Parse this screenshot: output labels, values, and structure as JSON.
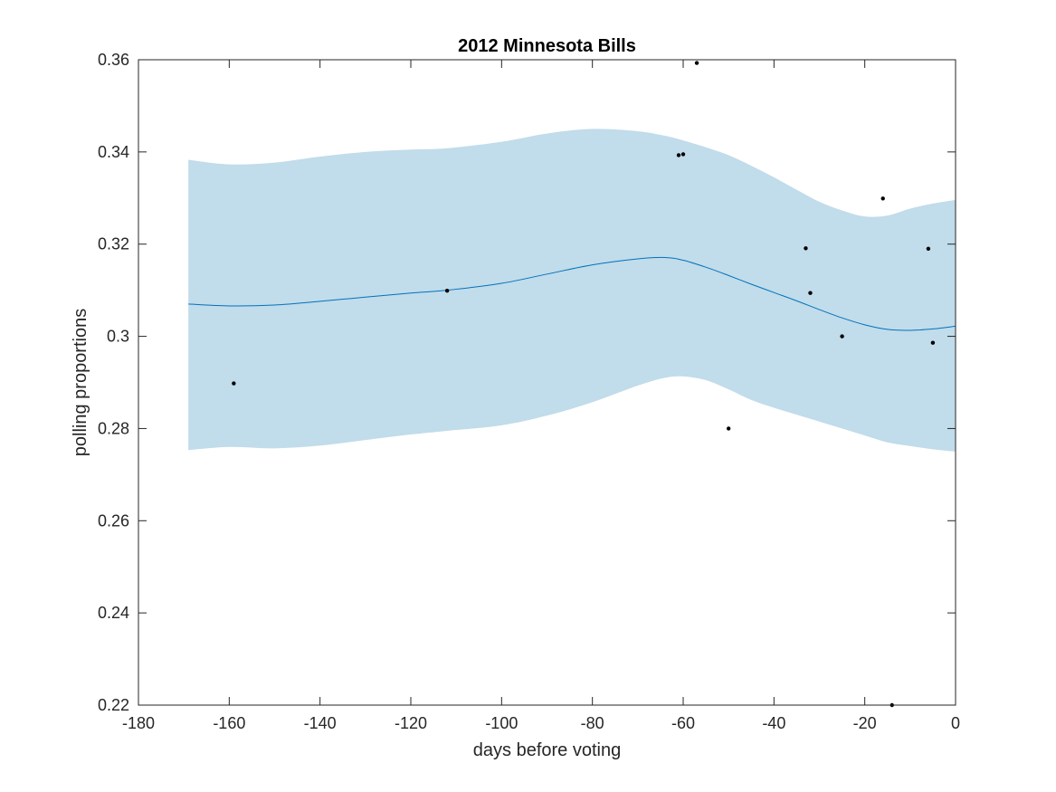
{
  "chart_data": {
    "type": "line",
    "title": "2012 Minnesota Bills",
    "xlabel": "days before voting",
    "ylabel": "polling proportions",
    "xlim": [
      -180,
      0
    ],
    "ylim": [
      0.22,
      0.36
    ],
    "x_ticks": [
      -180,
      -160,
      -140,
      -120,
      -100,
      -80,
      -60,
      -40,
      -20,
      0
    ],
    "y_ticks": [
      0.22,
      0.24,
      0.26,
      0.28,
      0.3,
      0.32,
      0.34,
      0.36
    ],
    "x_tick_labels": [
      "-180",
      "-160",
      "-140",
      "-120",
      "-100",
      "-80",
      "-60",
      "-40",
      "-20",
      "0"
    ],
    "y_tick_labels": [
      "0.22",
      "0.24",
      "0.26",
      "0.28",
      "0.3",
      "0.32",
      "0.34",
      "0.36"
    ],
    "grid": false,
    "colors": {
      "band": "#c1dcea",
      "line": "#0072bd",
      "points": "#000000",
      "axes": "#262626"
    },
    "trend": {
      "x": [
        -169,
        -160,
        -150,
        -140,
        -130,
        -120,
        -112,
        -100,
        -90,
        -80,
        -70,
        -64,
        -60,
        -55,
        -50,
        -45,
        -40,
        -35,
        -30,
        -25,
        -20,
        -15,
        -10,
        -5,
        0
      ],
      "mean": [
        0.307,
        0.3066,
        0.3068,
        0.3076,
        0.3085,
        0.3094,
        0.31,
        0.3115,
        0.3135,
        0.3155,
        0.3168,
        0.3171,
        0.3165,
        0.315,
        0.3132,
        0.3113,
        0.3095,
        0.3077,
        0.3058,
        0.304,
        0.3025,
        0.3015,
        0.3013,
        0.3016,
        0.3022
      ],
      "upper": [
        0.3383,
        0.3373,
        0.3377,
        0.339,
        0.34,
        0.3405,
        0.3408,
        0.3422,
        0.344,
        0.345,
        0.3445,
        0.3435,
        0.3425,
        0.341,
        0.3393,
        0.337,
        0.3345,
        0.3318,
        0.3292,
        0.3273,
        0.326,
        0.3262,
        0.3277,
        0.3288,
        0.3296
      ],
      "lower": [
        0.2753,
        0.276,
        0.2757,
        0.2763,
        0.2775,
        0.2787,
        0.2795,
        0.2807,
        0.2828,
        0.2857,
        0.2893,
        0.291,
        0.2913,
        0.2905,
        0.2885,
        0.2862,
        0.2845,
        0.283,
        0.2815,
        0.28,
        0.2785,
        0.277,
        0.2762,
        0.2755,
        0.275
      ]
    },
    "points": {
      "x": [
        -159,
        -112,
        -61,
        -60,
        -57,
        -50,
        -33,
        -32,
        -25,
        -16,
        -14,
        -6,
        -5
      ],
      "y": [
        0.2898,
        0.3099,
        0.3393,
        0.3395,
        0.3593,
        0.28,
        0.3191,
        0.3094,
        0.3,
        0.3299,
        0.22,
        0.319,
        0.2986
      ]
    }
  }
}
